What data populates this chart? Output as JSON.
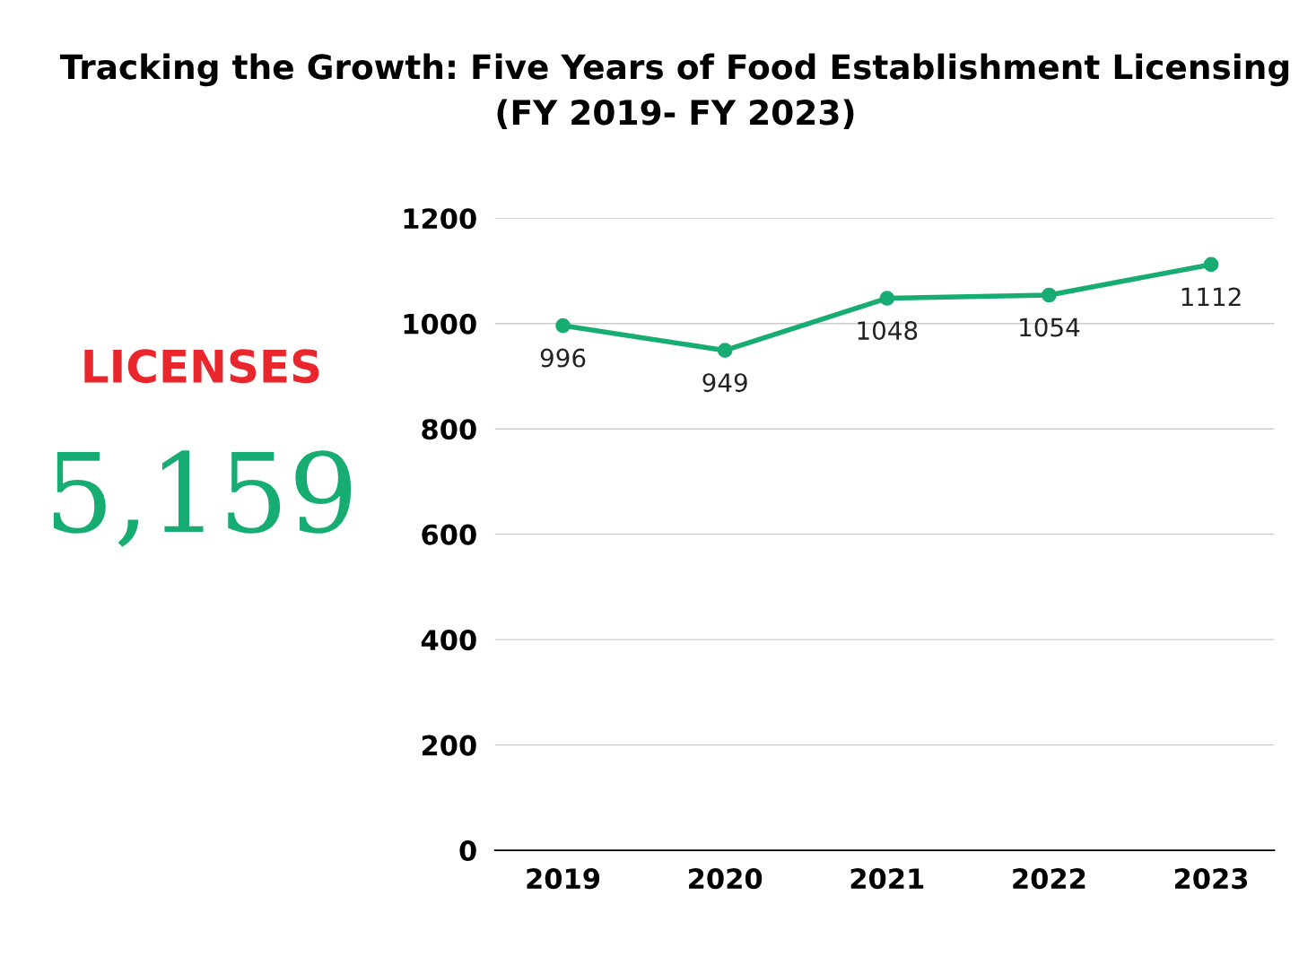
{
  "chart_data": [
    {
      "type": "line",
      "title": "Tracking the Growth: Five Years of Food Establishment Licensing\n(FY 2019- FY 2023)",
      "categories": [
        "2019",
        "2020",
        "2021",
        "2022",
        "2023"
      ],
      "series": [
        {
          "color": "#17ad72",
          "values": [
            996,
            949,
            1048,
            1054,
            1112
          ]
        }
      ],
      "ylim": [
        0,
        1200
      ],
      "yticks": [
        0,
        200,
        400,
        600,
        800,
        1000,
        1200
      ],
      "grid": "y",
      "marker": "circle",
      "line_style": "solid",
      "data_labels": true
    },
    {
      "type": "other",
      "title": "LICENSES",
      "annotations": [
        "5,159"
      ]
    }
  ]
}
